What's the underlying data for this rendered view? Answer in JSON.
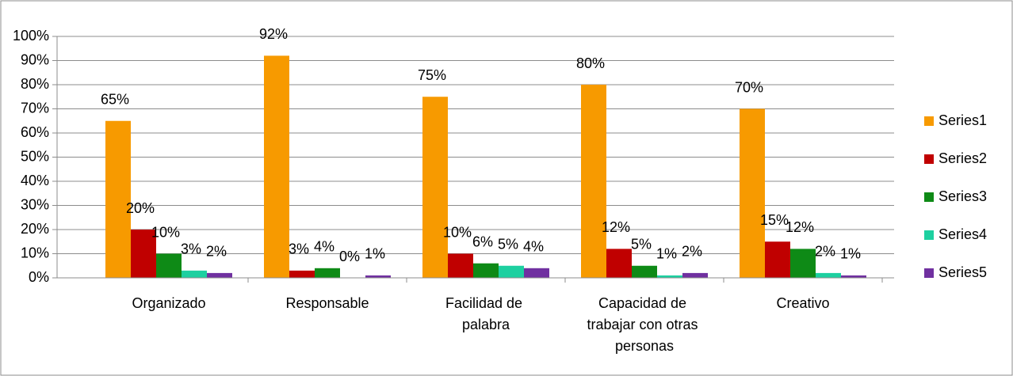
{
  "chart_data": {
    "type": "bar",
    "categories": [
      "Organizado",
      "Responsable",
      "Facilidad de palabra",
      "Capacidad de trabajar con otras personas",
      "Creativo"
    ],
    "series": [
      {
        "name": "Series1",
        "color": "#f79a00",
        "values": [
          65,
          92,
          75,
          80,
          70
        ],
        "value_labels": [
          "65%",
          "92%",
          "75%",
          "80%",
          "70%"
        ]
      },
      {
        "name": "Series2",
        "color": "#c00000",
        "values": [
          20,
          3,
          10,
          12,
          15
        ],
        "value_labels": [
          "20%",
          "3%",
          "10%",
          "12%",
          "15%"
        ]
      },
      {
        "name": "Series3",
        "color": "#0e8a16",
        "values": [
          10,
          4,
          6,
          5,
          12
        ],
        "value_labels": [
          "10%",
          "4%",
          "6%",
          "5%",
          "12%"
        ]
      },
      {
        "name": "Series4",
        "color": "#1dd0a0",
        "values": [
          3,
          0,
          5,
          1,
          2
        ],
        "value_labels": [
          "3%",
          "0%",
          "5%",
          "1%",
          "2%"
        ]
      },
      {
        "name": "Series5",
        "color": "#7030a0",
        "values": [
          2,
          1,
          4,
          2,
          1
        ],
        "value_labels": [
          "2%",
          "1%",
          "4%",
          "2%",
          "1%"
        ]
      }
    ],
    "ylim": [
      0,
      100
    ],
    "yticks": [
      {
        "value": 0,
        "label": "0%"
      },
      {
        "value": 10,
        "label": "10%"
      },
      {
        "value": 20,
        "label": "20%"
      },
      {
        "value": 30,
        "label": "30%"
      },
      {
        "value": 40,
        "label": "40%"
      },
      {
        "value": 50,
        "label": "50%"
      },
      {
        "value": 60,
        "label": "60%"
      },
      {
        "value": 70,
        "label": "70%"
      },
      {
        "value": 80,
        "label": "80%"
      },
      {
        "value": 90,
        "label": "90%"
      },
      {
        "value": 100,
        "label": "100%"
      }
    ],
    "grid": true,
    "legend": "right"
  }
}
